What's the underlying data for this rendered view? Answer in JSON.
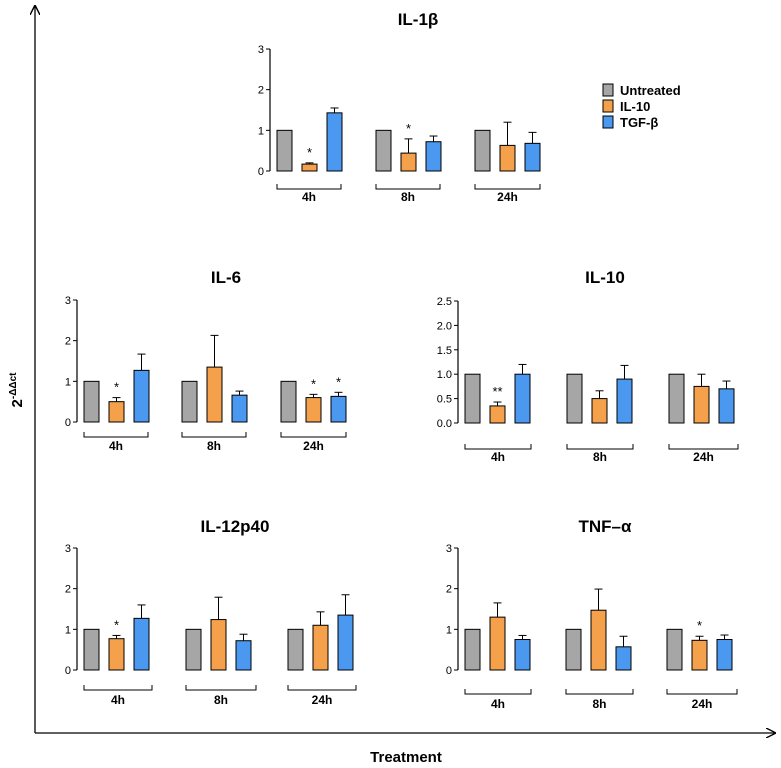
{
  "figure": {
    "y_axis_label": "2",
    "y_axis_label_superscript": "-ΔΔct",
    "x_axis_label": "Treatment"
  },
  "legend": {
    "placement": "top-right",
    "entries": [
      {
        "name": "Untreated",
        "color": "#a6a6a6"
      },
      {
        "name": "IL-10",
        "color": "#f5a04a"
      },
      {
        "name": "TGF-β",
        "color": "#4a98ef"
      }
    ]
  },
  "chart_data": [
    {
      "type": "bar",
      "title": "IL-1β",
      "categories": [
        "4h",
        "8h",
        "24h"
      ],
      "ylim": [
        0,
        3
      ],
      "yticks": [
        "0",
        "1",
        "2",
        "3"
      ],
      "series": [
        {
          "name": "Untreated",
          "values": [
            1.0,
            1.0,
            1.0
          ],
          "errors": [
            0,
            0,
            0
          ]
        },
        {
          "name": "IL-10",
          "values": [
            0.17,
            0.44,
            0.63
          ],
          "errors": [
            0.03,
            0.35,
            0.57
          ]
        },
        {
          "name": "TGF-β",
          "values": [
            1.43,
            0.72,
            0.68
          ],
          "errors": [
            0.12,
            0.14,
            0.27
          ]
        }
      ],
      "significance": [
        [
          "",
          "*",
          ""
        ],
        [
          "",
          "*",
          ""
        ],
        [
          "",
          "",
          ""
        ]
      ]
    },
    {
      "type": "bar",
      "title": "IL-6",
      "categories": [
        "4h",
        "8h",
        "24h"
      ],
      "ylim": [
        0,
        3
      ],
      "yticks": [
        "0",
        "1",
        "2",
        "3"
      ],
      "series": [
        {
          "name": "Untreated",
          "values": [
            1.0,
            1.0,
            1.0
          ],
          "errors": [
            0,
            0,
            0
          ]
        },
        {
          "name": "IL-10",
          "values": [
            0.5,
            1.35,
            0.6
          ],
          "errors": [
            0.1,
            0.78,
            0.08
          ]
        },
        {
          "name": "TGF-β",
          "values": [
            1.27,
            0.66,
            0.63
          ],
          "errors": [
            0.4,
            0.1,
            0.1
          ]
        }
      ],
      "significance": [
        [
          "",
          "*",
          ""
        ],
        [
          "",
          "",
          ""
        ],
        [
          "",
          "*",
          "*"
        ]
      ]
    },
    {
      "type": "bar",
      "title": "IL-10",
      "categories": [
        "4h",
        "8h",
        "24h"
      ],
      "ylim": [
        0,
        2.5
      ],
      "yticks": [
        "0.0",
        "0.5",
        "1.0",
        "1.5",
        "2.0",
        "2.5"
      ],
      "series": [
        {
          "name": "Untreated",
          "values": [
            1.0,
            1.0,
            1.0
          ],
          "errors": [
            0,
            0,
            0
          ]
        },
        {
          "name": "IL-10",
          "values": [
            0.35,
            0.5,
            0.75
          ],
          "errors": [
            0.08,
            0.16,
            0.25
          ]
        },
        {
          "name": "TGF-β",
          "values": [
            1.0,
            0.9,
            0.7
          ],
          "errors": [
            0.2,
            0.28,
            0.16
          ]
        }
      ],
      "significance": [
        [
          "",
          "**",
          ""
        ],
        [
          "",
          "",
          ""
        ],
        [
          "",
          "",
          ""
        ]
      ]
    },
    {
      "type": "bar",
      "title": "IL-12p40",
      "categories": [
        "4h",
        "8h",
        "24h"
      ],
      "ylim": [
        0,
        3
      ],
      "yticks": [
        "0",
        "1",
        "2",
        "3"
      ],
      "series": [
        {
          "name": "Untreated",
          "values": [
            1.0,
            1.0,
            1.0
          ],
          "errors": [
            0,
            0,
            0
          ]
        },
        {
          "name": "IL-10",
          "values": [
            0.77,
            1.24,
            1.1
          ],
          "errors": [
            0.08,
            0.55,
            0.33
          ]
        },
        {
          "name": "TGF-β",
          "values": [
            1.27,
            0.72,
            1.35
          ],
          "errors": [
            0.33,
            0.16,
            0.5
          ]
        }
      ],
      "significance": [
        [
          "",
          "*",
          ""
        ],
        [
          "",
          "",
          ""
        ],
        [
          "",
          "",
          ""
        ]
      ]
    },
    {
      "type": "bar",
      "title": "TNF–α",
      "categories": [
        "4h",
        "8h",
        "24h"
      ],
      "ylim": [
        0,
        3
      ],
      "yticks": [
        "0",
        "1",
        "2",
        "3"
      ],
      "series": [
        {
          "name": "Untreated",
          "values": [
            1.0,
            1.0,
            1.0
          ],
          "errors": [
            0,
            0,
            0
          ]
        },
        {
          "name": "IL-10",
          "values": [
            1.3,
            1.47,
            0.73
          ],
          "errors": [
            0.35,
            0.52,
            0.1
          ]
        },
        {
          "name": "TGF-β",
          "values": [
            0.75,
            0.57,
            0.75
          ],
          "errors": [
            0.1,
            0.26,
            0.11
          ]
        }
      ],
      "significance": [
        [
          "",
          "",
          ""
        ],
        [
          "",
          "",
          ""
        ],
        [
          "",
          "*",
          ""
        ]
      ]
    }
  ]
}
